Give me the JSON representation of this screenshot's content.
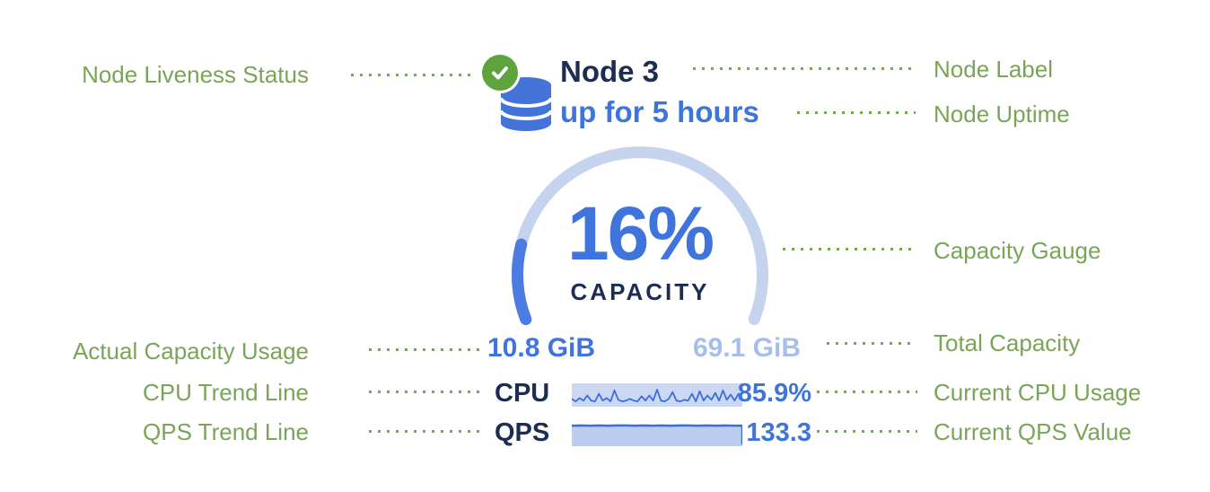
{
  "colors": {
    "annotation_green": "#79a556",
    "status_green": "#5ea33e",
    "navy": "#1c2c52",
    "blue": "#3e74db",
    "light_blue": "#a6beec",
    "gauge_track": "#c6d3ef",
    "gauge_fill": "#4b7ce2",
    "icon_blue": "#4473d9",
    "spark_bg": "#ccd8f3",
    "spark_line": "#3b6ed8",
    "qps_fill": "#bccdef"
  },
  "node": {
    "name": "Node 3",
    "uptime": "up for 5 hours",
    "status_icon": "green-check-icon",
    "type_icon": "database-icon"
  },
  "annotations": {
    "left": [
      {
        "label": "Node Liveness Status"
      },
      {
        "label": "Actual Capacity Usage"
      },
      {
        "label": "CPU Trend Line"
      },
      {
        "label": "QPS Trend Line"
      }
    ],
    "right": [
      {
        "label": "Node Label"
      },
      {
        "label": "Node Uptime"
      },
      {
        "label": "Capacity Gauge"
      },
      {
        "label": "Total Capacity"
      },
      {
        "label": "Current CPU Usage"
      },
      {
        "label": "Current QPS Value"
      }
    ]
  },
  "chart_data": [
    {
      "type": "gauge",
      "title": "CAPACITY",
      "percent": 16,
      "percent_label": "16%",
      "used_label": "10.8 GiB",
      "total_label": "69.1 GiB",
      "arc_degrees": 222.6,
      "arc_start_degrees": 158.7
    },
    {
      "type": "line",
      "name": "CPU",
      "current_label": "85.9%",
      "ylim": [
        0,
        1
      ],
      "values": [
        0.3,
        0.15,
        0.35,
        0.2,
        0.5,
        0.2,
        0.15,
        0.6,
        0.2,
        0.35,
        0.15,
        0.8,
        0.25,
        0.15,
        0.2,
        0.3,
        0.2,
        0.15,
        0.45,
        0.2,
        0.5,
        0.2,
        0.85,
        0.2,
        0.15,
        0.3,
        0.7,
        0.2,
        0.15,
        0.25,
        0.2,
        0.6,
        0.15,
        0.75,
        0.2,
        0.5,
        0.25,
        0.65,
        0.2,
        0.8,
        0.25,
        0.55,
        0.2,
        0.6,
        0.3
      ]
    },
    {
      "type": "area",
      "name": "QPS",
      "current_label": "133.3",
      "ylim": [
        0,
        1
      ],
      "values": [
        0.9,
        0.91,
        0.9,
        0.91,
        0.9,
        0.91,
        0.91,
        0.9,
        0.91,
        0.9,
        0.91,
        0.9,
        0.91,
        0.91,
        0.9,
        0.91,
        0.9,
        0.91,
        0.9,
        0.9
      ]
    }
  ]
}
